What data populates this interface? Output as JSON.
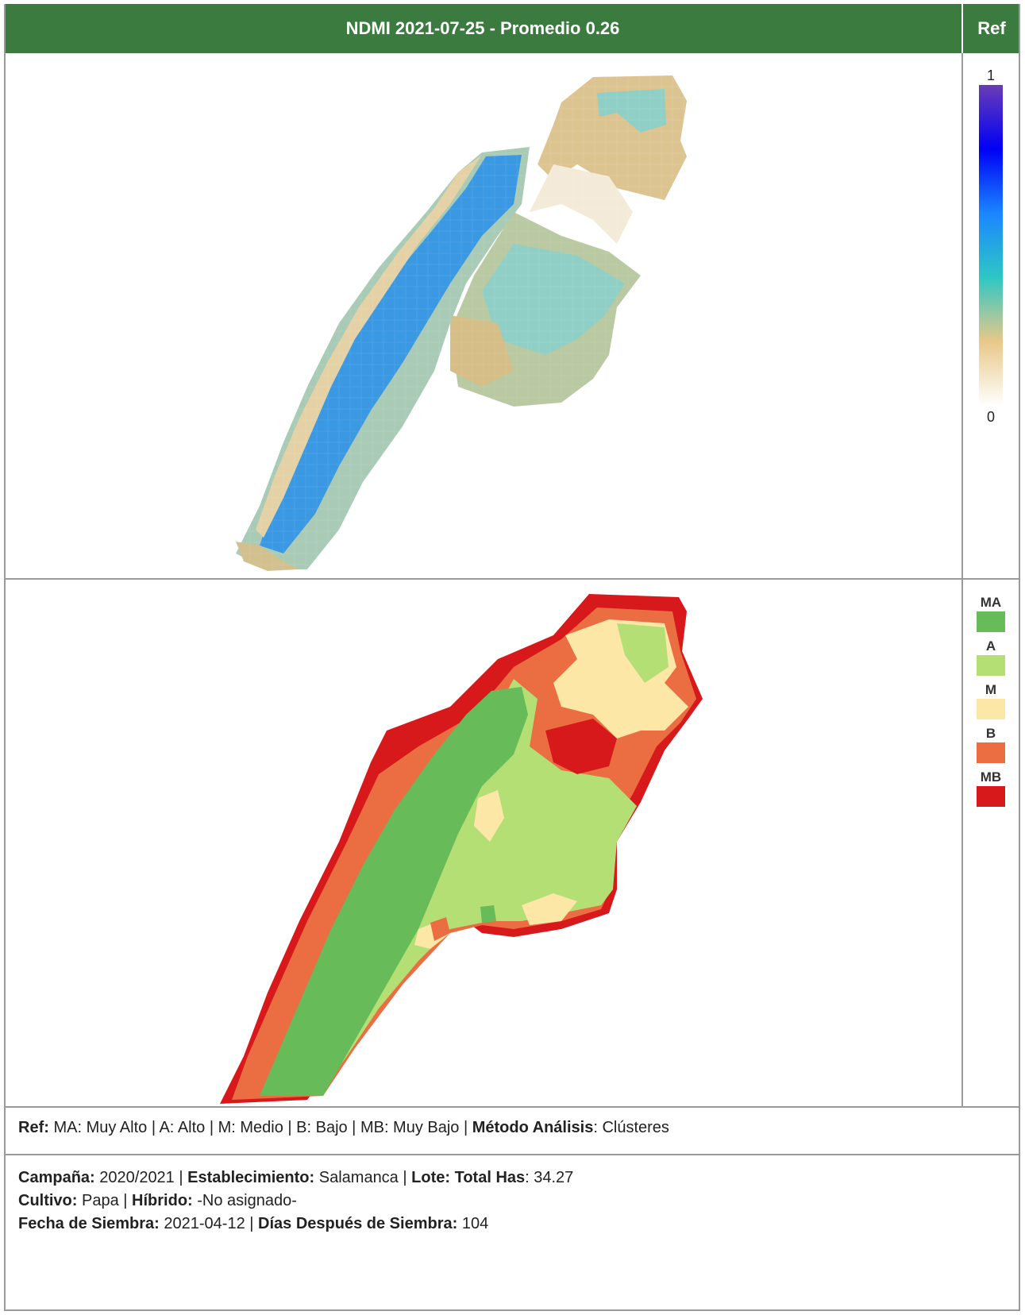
{
  "header": {
    "title": "NDMI 2021-07-25 - Promedio 0.26",
    "ref": "Ref"
  },
  "scale": {
    "max_label": "1",
    "min_label": "0",
    "colors": [
      "#ffffff",
      "#e9c889",
      "#2ec7c4",
      "#1b86ff",
      "#0000f5",
      "#6a3db5"
    ]
  },
  "legend": [
    {
      "code": "MA",
      "color": "#68bb59"
    },
    {
      "code": "A",
      "color": "#b4df75"
    },
    {
      "code": "M",
      "color": "#fde7a6"
    },
    {
      "code": "B",
      "color": "#eb6e43"
    },
    {
      "code": "MB",
      "color": "#d7191c"
    }
  ],
  "footer": {
    "ref_label": "Ref:",
    "ref_text": "MA: Muy Alto | A: Alto | M: Medio | B: Bajo | MB: Muy Bajo |",
    "method_label": "Método Análisis",
    "method_value": ": Clústeres",
    "campaign_label": "Campaña:",
    "campaign_value": "2020/2021",
    "establishment_label": "Establecimiento:",
    "establishment_value": "Salamanca",
    "lot_label": "Lote:",
    "total_has_label": "Total Has",
    "total_has_value": ": 34.27",
    "crop_label": "Cultivo:",
    "crop_value": "Papa",
    "hybrid_label": "Híbrido:",
    "hybrid_value": "-No asignado-",
    "sowing_date_label": "Fecha de Siembra:",
    "sowing_date_value": "2021-04-12",
    "days_label": "Días Después de Siembra:",
    "days_value": "104",
    "separator": "|"
  }
}
